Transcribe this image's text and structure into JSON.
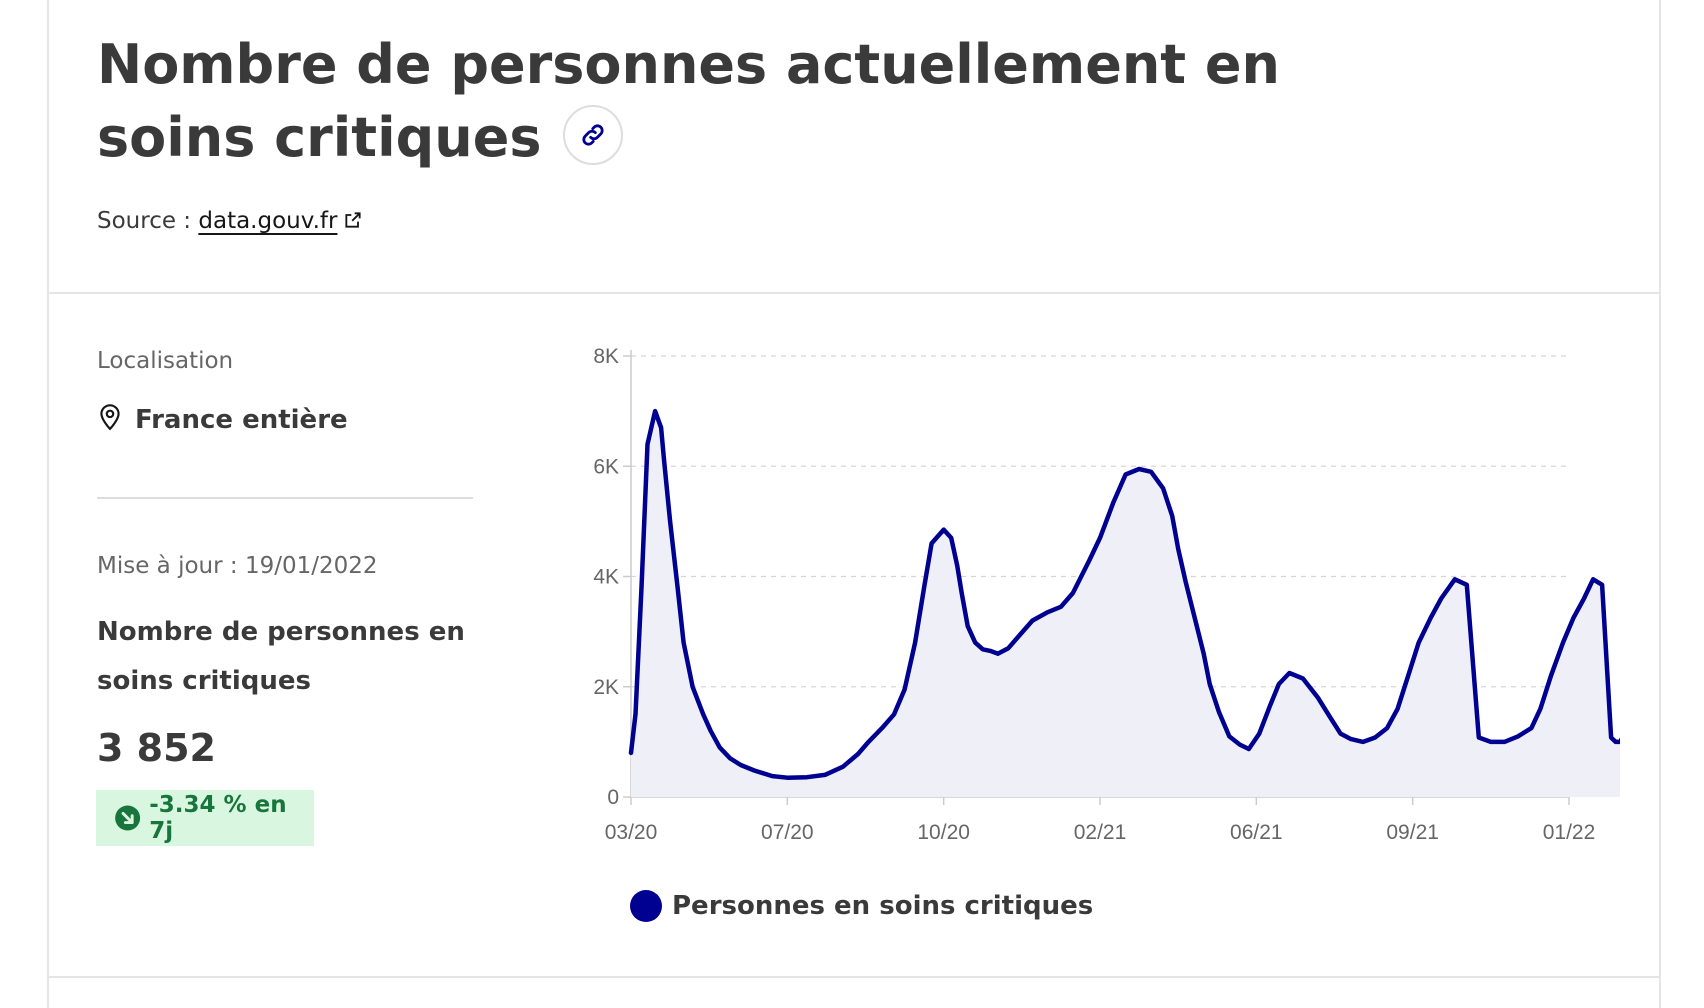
{
  "header": {
    "title": "Nombre de personnes actuellement en soins critiques",
    "link_icon": "link-icon",
    "source_prefix": "Source :",
    "source_link": "data.gouv.fr",
    "source_icon": "external-link-icon"
  },
  "location": {
    "label": "Localisation",
    "icon": "map-pin-icon",
    "value": "France entière"
  },
  "kpi": {
    "updated": "Mise à jour : 19/01/2022",
    "label": "Nombre de personnes en soins critiques",
    "value": "3 852",
    "trend_icon": "arrow-down-right-icon",
    "trend": "-3.34 % en 7j",
    "trend_color": "#18753c"
  },
  "chart_data": {
    "type": "area",
    "line_color": "#000091",
    "fill_color": "#eff0f7",
    "grid": "horizontal-dashed",
    "legend_position": "bottom",
    "ylim": [
      0,
      8000
    ],
    "y_ticks": [
      {
        "v": 0,
        "label": "0"
      },
      {
        "v": 2000,
        "label": "2K"
      },
      {
        "v": 4000,
        "label": "4K"
      },
      {
        "v": 6000,
        "label": "6K"
      },
      {
        "v": 8000,
        "label": "8K"
      }
    ],
    "x_ticks": [
      {
        "date": "2020-03-19",
        "label": "03/20"
      },
      {
        "date": "2020-07-01",
        "label": "07/20"
      },
      {
        "date": "2020-10-13",
        "label": "10/20"
      },
      {
        "date": "2021-01-25",
        "label": "02/21"
      },
      {
        "date": "2021-05-09",
        "label": "06/21"
      },
      {
        "date": "2021-08-21",
        "label": "09/21"
      },
      {
        "date": "2021-12-03",
        "label": "01/22"
      }
    ],
    "series": [
      {
        "name": "Personnes en soins critiques",
        "x": [
          "2020-03-19",
          "2020-03-22",
          "2020-03-26",
          "2020-03-30",
          "2020-04-04",
          "2020-04-08",
          "2020-04-10",
          "2020-04-14",
          "2020-04-19",
          "2020-04-23",
          "2020-04-29",
          "2020-05-06",
          "2020-05-11",
          "2020-05-17",
          "2020-05-24",
          "2020-05-31",
          "2020-06-09",
          "2020-06-21",
          "2020-07-01",
          "2020-07-14",
          "2020-07-26",
          "2020-08-07",
          "2020-08-17",
          "2020-08-24",
          "2020-09-02",
          "2020-09-10",
          "2020-09-17",
          "2020-09-24",
          "2020-09-30",
          "2020-10-05",
          "2020-10-13",
          "2020-10-18",
          "2020-10-22",
          "2020-10-25",
          "2020-10-29",
          "2020-11-03",
          "2020-11-08",
          "2020-11-13",
          "2020-11-18",
          "2020-11-25",
          "2020-12-03",
          "2020-12-11",
          "2020-12-21",
          "2020-12-30",
          "2021-01-07",
          "2021-01-18",
          "2021-01-25",
          "2021-02-03",
          "2021-02-11",
          "2021-02-20",
          "2021-02-28",
          "2021-03-08",
          "2021-03-14",
          "2021-03-18",
          "2021-03-23",
          "2021-03-29",
          "2021-04-04",
          "2021-04-08",
          "2021-04-14",
          "2021-04-21",
          "2021-04-28",
          "2021-05-04",
          "2021-05-11",
          "2021-05-18",
          "2021-05-24",
          "2021-05-31",
          "2021-06-09",
          "2021-06-19",
          "2021-06-27",
          "2021-07-04",
          "2021-07-11",
          "2021-07-19",
          "2021-07-27",
          "2021-08-04",
          "2021-08-11",
          "2021-08-18",
          "2021-08-25",
          "2021-09-02",
          "2021-09-09",
          "2021-09-18",
          "2021-09-26",
          "2021-10-04",
          "2021-10-12",
          "2021-10-21",
          "2021-10-30",
          "2021-11-08",
          "2021-11-14",
          "2021-11-21",
          "2021-11-29",
          "2021-12-06",
          "2021-12-13",
          "2021-12-19",
          "2021-12-25",
          "2021-12-31",
          "2022-01-03",
          "2022-01-06",
          "2022-01-08",
          "2022-01-10"
        ],
        "values": [
          800,
          1500,
          3800,
          6400,
          7000,
          6700,
          6100,
          5000,
          3800,
          2800,
          2000,
          1500,
          1200,
          900,
          700,
          580,
          480,
          380,
          350,
          360,
          400,
          550,
          780,
          1000,
          1250,
          1500,
          1950,
          2800,
          3800,
          4600,
          4850,
          4700,
          4200,
          3700,
          3100,
          2800,
          2680,
          2650,
          2600,
          2700,
          2950,
          3200,
          3350,
          3450,
          3700,
          4300,
          4700,
          5350,
          5850,
          5950,
          5900,
          5600,
          5100,
          4500,
          3900,
          3250,
          2600,
          2050,
          1550,
          1100,
          950,
          870,
          1150,
          1650,
          2050,
          2250,
          2150,
          1800,
          1450,
          1150,
          1050,
          1000,
          1080,
          1250,
          1600,
          2200,
          2800,
          3250,
          3600,
          3950,
          3850,
          1080,
          1000,
          1000,
          1100,
          1250,
          1600,
          2200,
          2800,
          3250,
          3600,
          3950,
          3850,
          1080,
          1000,
          1000,
          1100,
          1250
        ],
        "note_order": "ignore"
      }
    ]
  },
  "legend": {
    "label": "Personnes en soins critiques"
  }
}
